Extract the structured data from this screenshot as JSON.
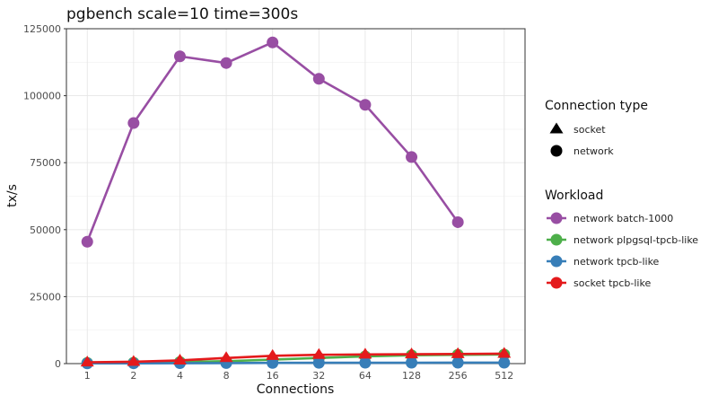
{
  "chart_data": {
    "type": "line",
    "title": "pgbench scale=10 time=300s",
    "xlabel": "Connections",
    "ylabel": "tx/s",
    "categories": [
      "1",
      "2",
      "4",
      "8",
      "16",
      "32",
      "64",
      "128",
      "256",
      "512"
    ],
    "ylim": [
      0,
      125000
    ],
    "yticks": [
      0,
      25000,
      50000,
      75000,
      100000,
      125000
    ],
    "ytick_labels": [
      "0",
      "25000",
      "50000",
      "75000",
      "100000",
      "125000"
    ],
    "grid": true,
    "legend_position": "right",
    "legend_shape": {
      "title": "Connection type",
      "items": [
        {
          "label": "socket",
          "shape": "triangle"
        },
        {
          "label": "network",
          "shape": "circle"
        }
      ]
    },
    "legend_workload": {
      "title": "Workload",
      "items": [
        {
          "label": "network batch-1000",
          "color": "#984ea3"
        },
        {
          "label": "network plpgsql-tpcb-like",
          "color": "#4daf4a"
        },
        {
          "label": "network tpcb-like",
          "color": "#377eb8"
        },
        {
          "label": "socket tpcb-like",
          "color": "#e41a1c"
        }
      ]
    },
    "series": [
      {
        "name": "network batch-1000",
        "color": "#984ea3",
        "shape": "circle",
        "values": [
          45500,
          89800,
          114700,
          112200,
          119900,
          106300,
          96600,
          77100,
          52800,
          null
        ]
      },
      {
        "name": "network plpgsql-tpcb-like",
        "color": "#4daf4a",
        "shape": "circle",
        "values": [
          250,
          350,
          600,
          900,
          1500,
          2100,
          2700,
          3100,
          3300,
          3400
        ]
      },
      {
        "name": "network tpcb-like",
        "color": "#377eb8",
        "shape": "circle",
        "values": [
          80,
          100,
          150,
          200,
          260,
          300,
          320,
          330,
          340,
          340
        ]
      },
      {
        "name": "socket tpcb-like",
        "color": "#e41a1c",
        "shape": "triangle",
        "values": [
          500,
          700,
          1200,
          2100,
          2900,
          3300,
          3400,
          3500,
          3600,
          3700
        ]
      }
    ]
  }
}
